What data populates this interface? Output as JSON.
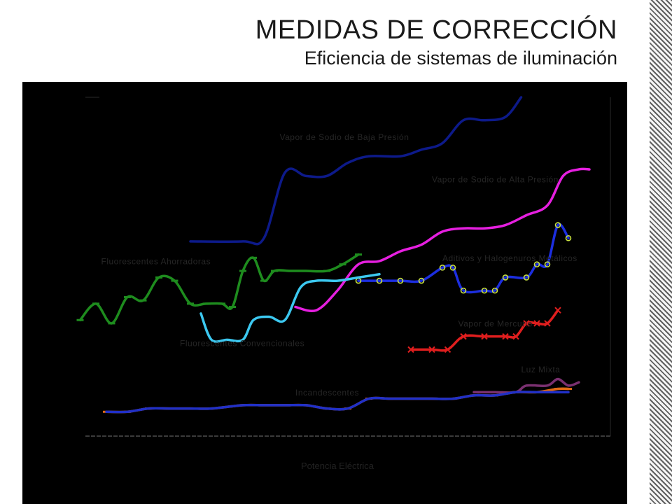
{
  "slide": {
    "title": "MEDIDAS DE CORRECCIÓN",
    "subtitle": "Eficiencia de sistemas de iluminación"
  },
  "chart_data": {
    "type": "line",
    "title": "",
    "xlabel": "Potencia Eléctrica",
    "ylabel": "",
    "background": "#000000",
    "grid": false,
    "legend": "none",
    "x_range": [
      0,
      100
    ],
    "y_range": [
      0,
      100
    ],
    "series": [
      {
        "name": "Vapor de Sodio de Baja Presión",
        "color": "#0d1a8a",
        "marker": "none",
        "points": [
          [
            20,
            56
          ],
          [
            30,
            56
          ],
          [
            34,
            57
          ],
          [
            38,
            77
          ],
          [
            42,
            76
          ],
          [
            46,
            76
          ],
          [
            50,
            80
          ],
          [
            54,
            82
          ],
          [
            60,
            82
          ],
          [
            64,
            84
          ],
          [
            68,
            86
          ],
          [
            72,
            93
          ],
          [
            76,
            93
          ],
          [
            80,
            94
          ],
          [
            83,
            100
          ]
        ]
      },
      {
        "name": "Vapor de Sodio de Alta Presión",
        "color": "#e61fe0",
        "marker": "none",
        "points": [
          [
            40,
            36
          ],
          [
            44,
            35
          ],
          [
            48,
            41
          ],
          [
            52,
            49
          ],
          [
            56,
            50
          ],
          [
            60,
            53
          ],
          [
            64,
            55
          ],
          [
            68,
            59
          ],
          [
            72,
            60
          ],
          [
            76,
            60
          ],
          [
            80,
            61
          ],
          [
            84,
            64
          ],
          [
            88,
            67
          ],
          [
            91,
            76
          ],
          [
            94,
            78
          ],
          [
            96,
            78
          ]
        ]
      },
      {
        "name": "Aditivos y Halogenuros Metálicos",
        "color": "#1c2ee0",
        "marker": "circle",
        "points": [
          [
            52,
            44
          ],
          [
            56,
            44
          ],
          [
            60,
            44
          ],
          [
            64,
            44
          ],
          [
            68,
            48
          ],
          [
            70,
            48
          ],
          [
            72,
            41
          ],
          [
            76,
            41
          ],
          [
            78,
            41
          ],
          [
            80,
            45
          ],
          [
            84,
            45
          ],
          [
            86,
            49
          ],
          [
            88,
            49
          ],
          [
            90,
            61
          ],
          [
            92,
            57
          ]
        ]
      },
      {
        "name": "Vapor de Mercurio",
        "color": "#e01e1e",
        "marker": "x",
        "points": [
          [
            62,
            23
          ],
          [
            66,
            23
          ],
          [
            69,
            23
          ],
          [
            72,
            27
          ],
          [
            76,
            27
          ],
          [
            80,
            27
          ],
          [
            82,
            27
          ],
          [
            84,
            31
          ],
          [
            86,
            31
          ],
          [
            88,
            31
          ],
          [
            90,
            35
          ]
        ]
      },
      {
        "name": "Luz Mixta",
        "color": "#7a3070",
        "marker": "none",
        "points": [
          [
            74,
            10
          ],
          [
            78,
            10
          ],
          [
            82,
            10
          ],
          [
            84,
            12
          ],
          [
            88,
            12
          ],
          [
            90,
            14
          ],
          [
            92,
            12
          ],
          [
            94,
            13
          ]
        ]
      },
      {
        "name": "Incandescentes",
        "color": "#e06a14",
        "marker": "dash",
        "points": [
          [
            4,
            4
          ],
          [
            8,
            4
          ],
          [
            12,
            5
          ],
          [
            16,
            5
          ],
          [
            20,
            5
          ],
          [
            24,
            5
          ],
          [
            30,
            6
          ],
          [
            34,
            6
          ],
          [
            38,
            6
          ],
          [
            42,
            6
          ],
          [
            46,
            5
          ],
          [
            50,
            5
          ],
          [
            54,
            8
          ],
          [
            58,
            8
          ],
          [
            62,
            8
          ],
          [
            66,
            8
          ],
          [
            70,
            8
          ],
          [
            74,
            9
          ],
          [
            78,
            9
          ],
          [
            82,
            10
          ],
          [
            86,
            10
          ],
          [
            90,
            11
          ],
          [
            92,
            11
          ]
        ]
      },
      {
        "name": "Incandescentes",
        "color": "#2030c8",
        "marker": "none",
        "points": [
          [
            4,
            4
          ],
          [
            8,
            4
          ],
          [
            12,
            5
          ],
          [
            16,
            5
          ],
          [
            20,
            5
          ],
          [
            24,
            5
          ],
          [
            30,
            6
          ],
          [
            34,
            6
          ],
          [
            38,
            6
          ],
          [
            42,
            6
          ],
          [
            46,
            5
          ],
          [
            50,
            5
          ],
          [
            54,
            8
          ],
          [
            58,
            8
          ],
          [
            62,
            8
          ],
          [
            66,
            8
          ],
          [
            70,
            8
          ],
          [
            74,
            9
          ],
          [
            78,
            9
          ],
          [
            82,
            10
          ],
          [
            86,
            10
          ],
          [
            90,
            10
          ],
          [
            92,
            10
          ]
        ]
      },
      {
        "name": "Fluorescentes Ahorradoras",
        "color": "#1e8c1e",
        "marker": "dash",
        "points": [
          [
            -1,
            32
          ],
          [
            2,
            37
          ],
          [
            5,
            31
          ],
          [
            8,
            39
          ],
          [
            11,
            38
          ],
          [
            14,
            45
          ],
          [
            17,
            44
          ],
          [
            20,
            37
          ],
          [
            23,
            37
          ],
          [
            26,
            37
          ],
          [
            28,
            36
          ],
          [
            30,
            47
          ],
          [
            32,
            51
          ],
          [
            34,
            44
          ],
          [
            36,
            47
          ],
          [
            39,
            47
          ],
          [
            42,
            47
          ],
          [
            46,
            47
          ],
          [
            49,
            49
          ],
          [
            52,
            52
          ]
        ]
      },
      {
        "name": "Fluorescentes Convencionales",
        "color": "#3cc8f0",
        "marker": "none",
        "points": [
          [
            22,
            34
          ],
          [
            24,
            26
          ],
          [
            27,
            26
          ],
          [
            30,
            26
          ],
          [
            32,
            32
          ],
          [
            35,
            33
          ],
          [
            38,
            32
          ],
          [
            41,
            42
          ],
          [
            44,
            44
          ],
          [
            48,
            44
          ],
          [
            52,
            45
          ],
          [
            56,
            46
          ]
        ]
      }
    ],
    "annotations": [
      {
        "text": "Vapor de Sodio de Baja Presión",
        "x": 37,
        "y": 87,
        "color": "#0d1a8a"
      },
      {
        "text": "Vapor de Sodio de Alta Presión",
        "x": 66,
        "y": 74,
        "color": "#e61fe0"
      },
      {
        "text": "Fluorescentes Ahorradoras",
        "x": 3,
        "y": 49,
        "color": "#1e8c1e"
      },
      {
        "text": "Aditivos y Halogenuros Metálicos",
        "x": 68,
        "y": 50,
        "color": "#1c2ee0"
      },
      {
        "text": "Fluorescentes Convencionales",
        "x": 18,
        "y": 24,
        "color": "#3cc8f0"
      },
      {
        "text": "Vapor de Mercurio",
        "x": 71,
        "y": 30,
        "color": "#e01e1e"
      },
      {
        "text": "Luz Mixta",
        "x": 83,
        "y": 16,
        "color": "#7a3070"
      },
      {
        "text": "Incandescentes",
        "x": 40,
        "y": 9,
        "color": "#e06a14"
      }
    ]
  }
}
